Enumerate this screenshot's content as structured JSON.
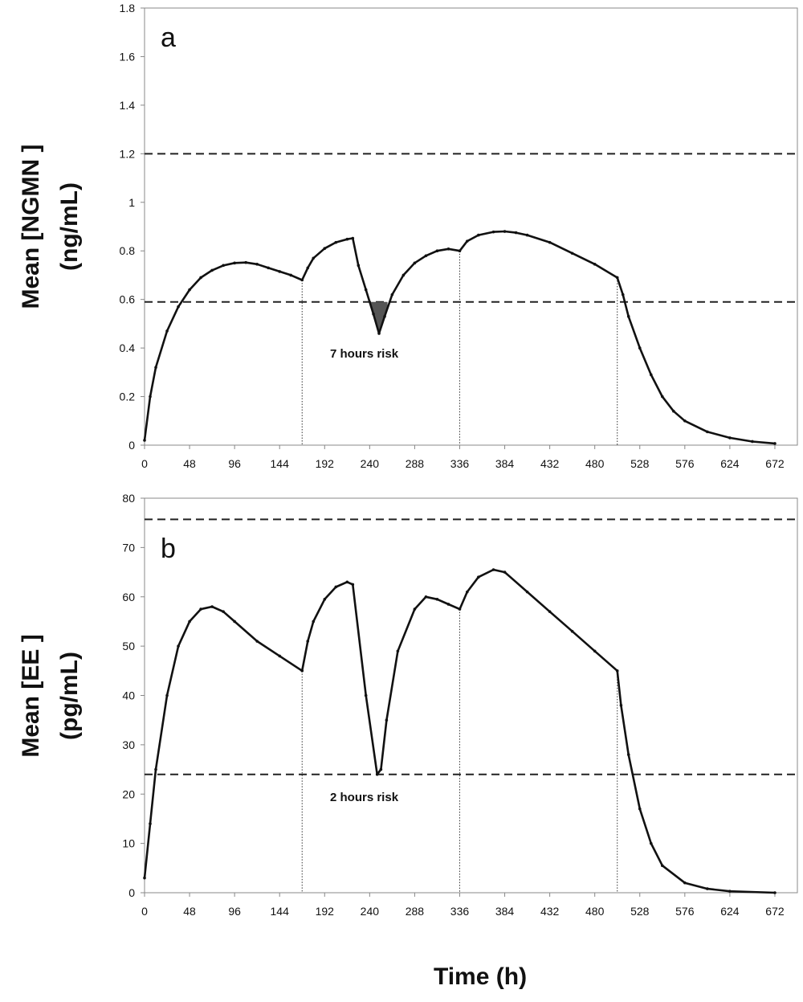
{
  "chart_data": [
    {
      "type": "line",
      "panel_label": "a",
      "ylabel_line1": "Mean [NGMN ]",
      "ylabel_line2": "(ng/mL)",
      "xticks": [
        0,
        48,
        96,
        144,
        192,
        240,
        288,
        336,
        384,
        432,
        480,
        528,
        576,
        624,
        672
      ],
      "xtick_labels": [
        "0",
        "48",
        "96",
        "144",
        "192",
        "240",
        "288",
        "336",
        "384",
        "432",
        "480",
        "528",
        "576",
        "624",
        "672"
      ],
      "yticks": [
        0,
        0.2,
        0.4,
        0.6,
        0.8,
        1,
        1.2,
        1.4,
        1.6,
        1.8
      ],
      "ytick_labels": [
        "0",
        "0.2",
        "0.4",
        "0.6",
        "0.8",
        "1",
        "1.2",
        "1.4",
        "1.6",
        "1.8"
      ],
      "xlim": [
        0,
        696
      ],
      "ylim": [
        0,
        1.8
      ],
      "reference_lines": [
        1.2,
        0.59
      ],
      "dose_change_lines": [
        168,
        336,
        504
      ],
      "annotation": "7 hours  risk",
      "risk_region": [
        239,
        259
      ],
      "series": [
        {
          "points": [
            [
              0,
              0.02
            ],
            [
              6,
              0.2
            ],
            [
              12,
              0.32
            ],
            [
              24,
              0.47
            ],
            [
              36,
              0.57
            ],
            [
              48,
              0.64
            ],
            [
              60,
              0.69
            ],
            [
              72,
              0.72
            ],
            [
              84,
              0.74
            ],
            [
              96,
              0.75
            ],
            [
              108,
              0.752
            ],
            [
              120,
              0.745
            ],
            [
              132,
              0.73
            ],
            [
              144,
              0.715
            ],
            [
              156,
              0.7
            ],
            [
              168,
              0.68
            ],
            [
              174,
              0.73
            ],
            [
              180,
              0.77
            ],
            [
              192,
              0.81
            ],
            [
              204,
              0.835
            ],
            [
              216,
              0.848
            ],
            [
              222,
              0.852
            ],
            [
              228,
              0.74
            ],
            [
              236,
              0.64
            ],
            [
              244,
              0.54
            ],
            [
              250,
              0.46
            ],
            [
              256,
              0.53
            ],
            [
              264,
              0.62
            ],
            [
              276,
              0.7
            ],
            [
              288,
              0.75
            ],
            [
              300,
              0.78
            ],
            [
              312,
              0.8
            ],
            [
              324,
              0.808
            ],
            [
              336,
              0.8
            ],
            [
              344,
              0.84
            ],
            [
              356,
              0.865
            ],
            [
              372,
              0.878
            ],
            [
              384,
              0.88
            ],
            [
              396,
              0.875
            ],
            [
              408,
              0.865
            ],
            [
              432,
              0.835
            ],
            [
              456,
              0.79
            ],
            [
              480,
              0.745
            ],
            [
              504,
              0.69
            ],
            [
              510,
              0.62
            ],
            [
              516,
              0.53
            ],
            [
              528,
              0.4
            ],
            [
              540,
              0.29
            ],
            [
              552,
              0.2
            ],
            [
              564,
              0.14
            ],
            [
              576,
              0.1
            ],
            [
              600,
              0.055
            ],
            [
              624,
              0.03
            ],
            [
              648,
              0.015
            ],
            [
              672,
              0.007
            ]
          ]
        }
      ]
    },
    {
      "type": "line",
      "panel_label": "b",
      "ylabel_line1": "Mean [EE ]",
      "ylabel_line2": "(pg/mL)",
      "xticks": [
        0,
        48,
        96,
        144,
        192,
        240,
        288,
        336,
        384,
        432,
        480,
        528,
        576,
        624,
        672
      ],
      "xtick_labels": [
        "0",
        "48",
        "96",
        "144",
        "192",
        "240",
        "288",
        "336",
        "384",
        "432",
        "480",
        "528",
        "576",
        "624",
        "672"
      ],
      "yticks": [
        0,
        10,
        20,
        30,
        40,
        50,
        60,
        70,
        80
      ],
      "ytick_labels": [
        "0",
        "10",
        "20",
        "30",
        "40",
        "50",
        "60",
        "70",
        "80"
      ],
      "xlim": [
        0,
        696
      ],
      "ylim": [
        0,
        80
      ],
      "reference_lines": [
        75.7,
        24
      ],
      "dose_change_lines": [
        168,
        336,
        504
      ],
      "annotation": "2 hours  risk",
      "series": [
        {
          "points": [
            [
              0,
              3
            ],
            [
              6,
              14
            ],
            [
              12,
              25
            ],
            [
              24,
              40
            ],
            [
              36,
              50
            ],
            [
              48,
              55
            ],
            [
              60,
              57.5
            ],
            [
              72,
              58
            ],
            [
              84,
              57
            ],
            [
              96,
              55
            ],
            [
              120,
              51
            ],
            [
              144,
              48
            ],
            [
              168,
              45
            ],
            [
              174,
              51
            ],
            [
              180,
              55
            ],
            [
              192,
              59.5
            ],
            [
              204,
              62
            ],
            [
              216,
              63
            ],
            [
              222,
              62.5
            ],
            [
              236,
              40
            ],
            [
              248,
              24
            ],
            [
              252,
              25
            ],
            [
              258,
              35
            ],
            [
              270,
              49
            ],
            [
              288,
              57.5
            ],
            [
              300,
              60
            ],
            [
              312,
              59.5
            ],
            [
              324,
              58.5
            ],
            [
              336,
              57.5
            ],
            [
              344,
              61
            ],
            [
              356,
              64
            ],
            [
              372,
              65.5
            ],
            [
              384,
              65
            ],
            [
              408,
              61
            ],
            [
              432,
              57
            ],
            [
              456,
              53
            ],
            [
              480,
              49
            ],
            [
              504,
              45
            ],
            [
              508,
              38
            ],
            [
              516,
              28
            ],
            [
              528,
              17
            ],
            [
              540,
              10
            ],
            [
              552,
              5.5
            ],
            [
              576,
              2
            ],
            [
              600,
              0.8
            ],
            [
              624,
              0.3
            ],
            [
              672,
              0
            ]
          ]
        }
      ]
    }
  ],
  "xlabel": "Time (h)"
}
